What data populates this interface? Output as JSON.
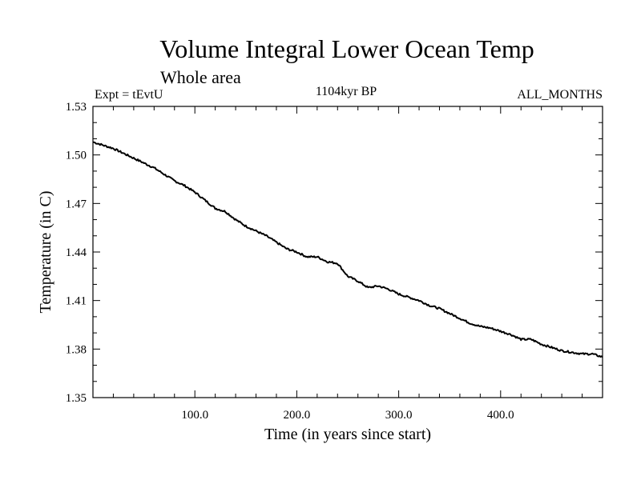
{
  "chart_data": {
    "type": "line",
    "title": "Volume Integral Lower Ocean Temp",
    "subtitle_left": "Whole area",
    "label_left": "Expt = tEvtU",
    "label_center": "1104kyr BP",
    "label_right": "ALL_MONTHS",
    "xlabel": "Time (in years since start)",
    "ylabel": "Temperature (in C)",
    "xlim": [
      0,
      500
    ],
    "ylim": [
      1.35,
      1.53
    ],
    "x_ticks_major": [
      100,
      200,
      300,
      400
    ],
    "x_tick_labels": [
      "100.0",
      "200.0",
      "300.0",
      "400.0"
    ],
    "y_ticks_major": [
      1.35,
      1.38,
      1.41,
      1.44,
      1.47,
      1.5,
      1.53
    ],
    "y_tick_labels": [
      "1.35",
      "1.38",
      "1.41",
      "1.44",
      "1.47",
      "1.50",
      "1.53"
    ],
    "grid": false,
    "line_color": "#000000",
    "series": [
      {
        "name": "Temperature",
        "x": [
          0,
          10,
          20,
          30,
          40,
          50,
          60,
          70,
          80,
          90,
          100,
          110,
          120,
          130,
          140,
          150,
          160,
          170,
          180,
          190,
          200,
          210,
          220,
          230,
          240,
          250,
          260,
          270,
          280,
          290,
          300,
          310,
          320,
          330,
          340,
          350,
          360,
          370,
          380,
          390,
          400,
          410,
          420,
          430,
          440,
          450,
          460,
          470,
          480,
          490,
          500
        ],
        "values": [
          1.508,
          1.506,
          1.504,
          1.501,
          1.498,
          1.495,
          1.492,
          1.488,
          1.484,
          1.481,
          1.477,
          1.472,
          1.467,
          1.465,
          1.46,
          1.456,
          1.453,
          1.45,
          1.446,
          1.442,
          1.44,
          1.437,
          1.437,
          1.434,
          1.433,
          1.425,
          1.422,
          1.418,
          1.419,
          1.417,
          1.414,
          1.412,
          1.41,
          1.407,
          1.405,
          1.402,
          1.399,
          1.396,
          1.394,
          1.393,
          1.391,
          1.389,
          1.386,
          1.386,
          1.383,
          1.381,
          1.379,
          1.378,
          1.377,
          1.377,
          1.375
        ]
      }
    ]
  }
}
